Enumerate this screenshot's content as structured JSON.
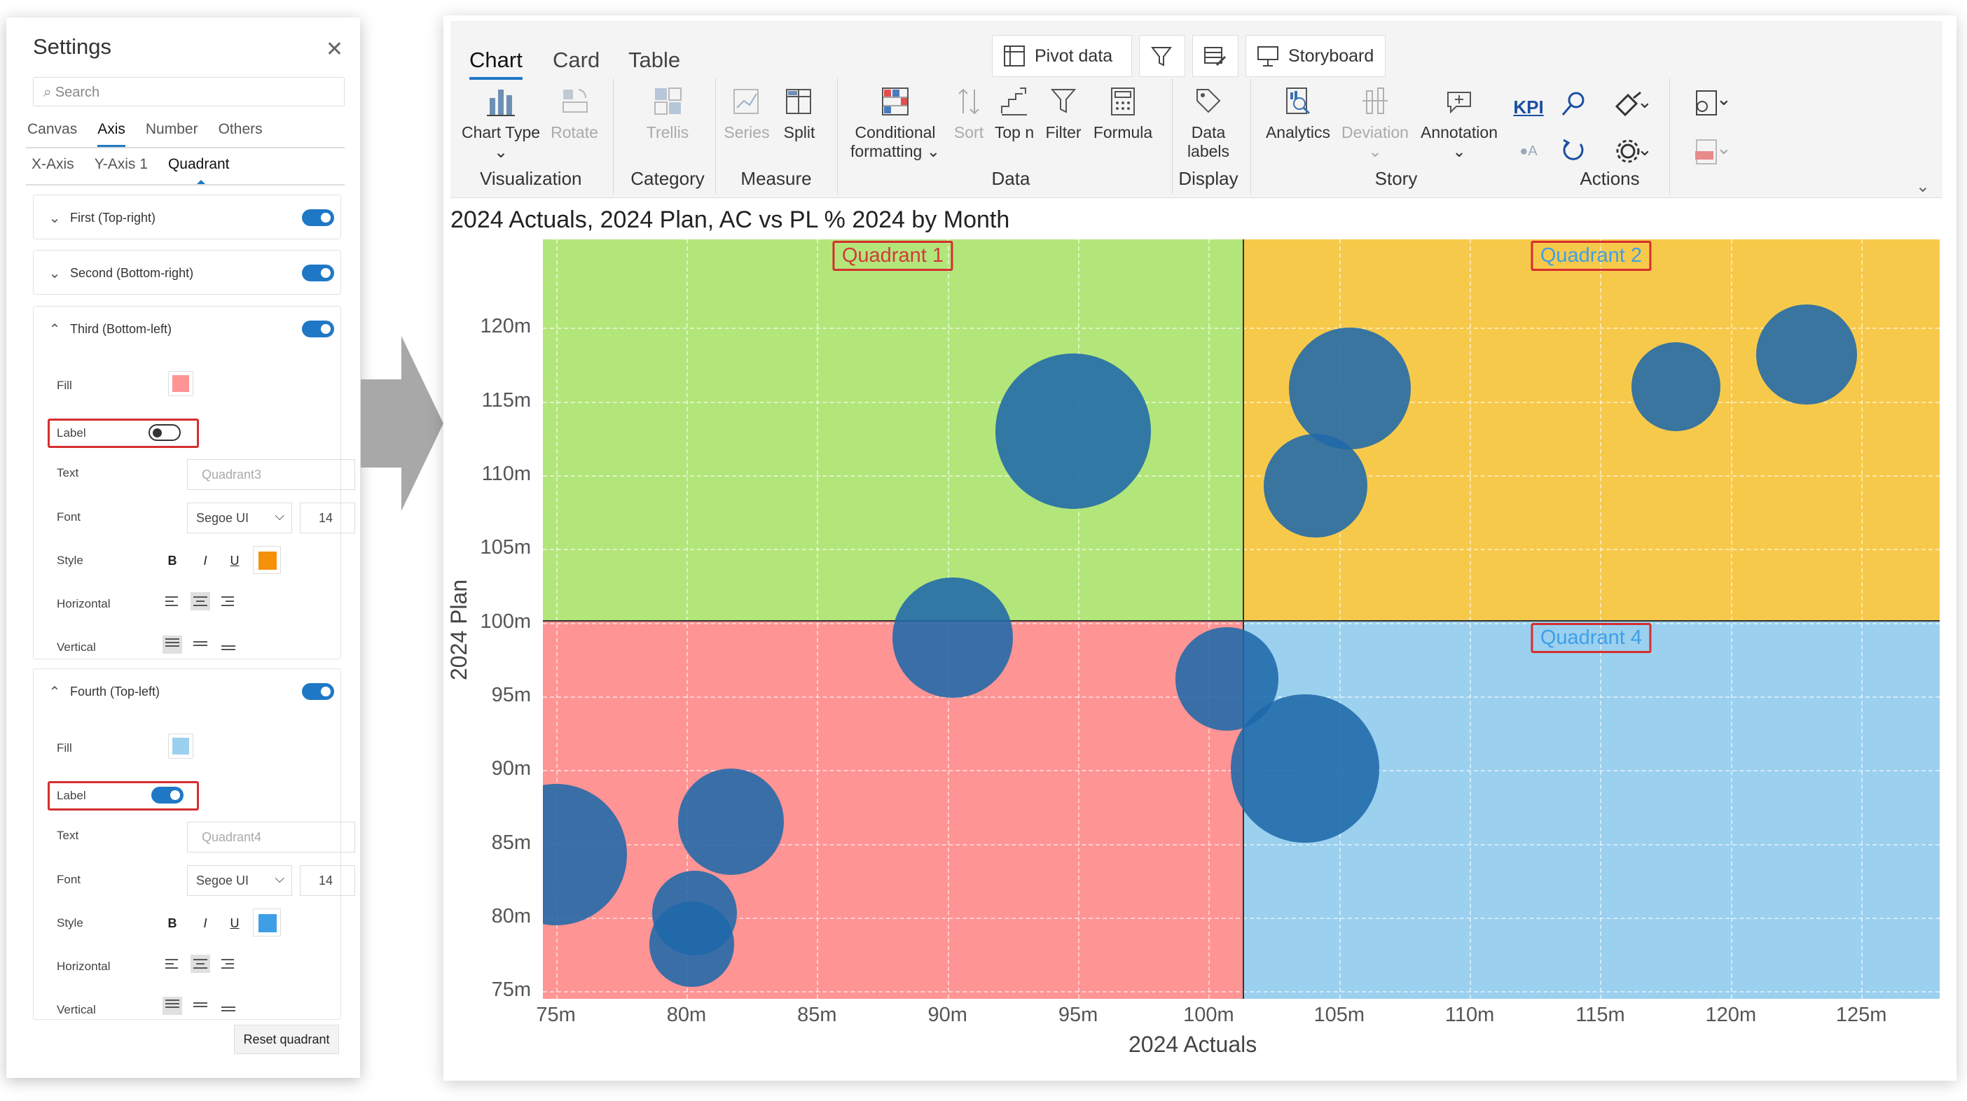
{
  "settings": {
    "title": "Settings",
    "search_placeholder": "Search",
    "tabs": [
      "Canvas",
      "Axis",
      "Number",
      "Others"
    ],
    "active_tab": "Axis",
    "subtabs": [
      "X-Axis",
      "Y-Axis 1",
      "Quadrant"
    ],
    "active_subtab": "Quadrant",
    "quadrants": [
      {
        "label": "First (Top-right)",
        "enabled": true,
        "expanded": false
      },
      {
        "label": "Second (Bottom-right)",
        "enabled": true,
        "expanded": false
      },
      {
        "label": "Third (Bottom-left)",
        "enabled": true,
        "expanded": true,
        "fill_color": "#ff9494",
        "label_on": false,
        "text_placeholder": "Quadrant3",
        "font": "Segoe UI",
        "font_size": "14",
        "font_color": "#f5900a"
      },
      {
        "label": "Fourth (Top-left)",
        "enabled": true,
        "expanded": true,
        "fill_color": "#9bd0ef",
        "label_on": true,
        "text_placeholder": "Quadrant4",
        "font": "Segoe UI",
        "font_size": "14",
        "font_color": "#3f9fe6"
      }
    ],
    "field_labels": {
      "fill": "Fill",
      "label": "Label",
      "text": "Text",
      "font": "Font",
      "style": "Style",
      "horizontal": "Horizontal",
      "vertical": "Vertical"
    },
    "style_buttons": {
      "bold": "B",
      "italic": "I",
      "underline": "U"
    },
    "reset_label": "Reset quadrant"
  },
  "ribbon": {
    "tabs": [
      "Chart",
      "Card",
      "Table"
    ],
    "active_tab": "Chart",
    "top_buttons": {
      "pivot": "Pivot data",
      "storyboard": "Storyboard"
    },
    "buttons": {
      "chart_type": "Chart Type",
      "rotate": "Rotate",
      "trellis": "Trellis",
      "series": "Series",
      "split": "Split",
      "conditional": "Conditional",
      "formatting": "formatting",
      "sort": "Sort",
      "topn": "Top n",
      "filter": "Filter",
      "formula": "Formula",
      "data": "Data",
      "labels": "labels",
      "analytics": "Analytics",
      "deviation": "Deviation",
      "annotation": "Annotation",
      "kpi": "KPI",
      "a": "A"
    },
    "groups": {
      "visualization": "Visualization",
      "category": "Category",
      "measure": "Measure",
      "data": "Data",
      "display": "Display",
      "story": "Story",
      "actions": "Actions"
    }
  },
  "chart_data": {
    "type": "scatter",
    "title": "2024 Actuals, 2024 Plan, AC vs PL % 2024 by Month",
    "xlabel": "2024 Actuals",
    "ylabel": "2024 Plan",
    "xlim": [
      74.5,
      128
    ],
    "ylim": [
      74.5,
      126
    ],
    "xticks": [
      "75m",
      "80m",
      "85m",
      "90m",
      "95m",
      "100m",
      "105m",
      "110m",
      "115m",
      "120m",
      "125m"
    ],
    "yticks": [
      "75m",
      "80m",
      "85m",
      "90m",
      "95m",
      "100m",
      "105m",
      "110m",
      "115m",
      "120m"
    ],
    "quadrant_split": {
      "x": 101.3,
      "y": 100.2
    },
    "quadrants": [
      {
        "name": "Quadrant 1",
        "position": "top-left",
        "fill": "#b3e67a",
        "label_color": "#d13a3a"
      },
      {
        "name": "Quadrant 2",
        "position": "top-right",
        "fill": "#f7c94b",
        "label_color": "#3f9fe6"
      },
      {
        "name": "",
        "position": "bottom-left",
        "fill": "#ff9494",
        "label_color": ""
      },
      {
        "name": "Quadrant 4",
        "position": "bottom-right",
        "fill": "#9bd0ef",
        "label_color": "#3f9fe6"
      }
    ],
    "points": [
      {
        "x": 75.0,
        "y": 84.3,
        "size": 1.0
      },
      {
        "x": 80.3,
        "y": 80.3,
        "size": 0.6
      },
      {
        "x": 80.2,
        "y": 78.2,
        "size": 0.6
      },
      {
        "x": 81.7,
        "y": 86.5,
        "size": 0.75
      },
      {
        "x": 90.2,
        "y": 99.0,
        "size": 0.85
      },
      {
        "x": 94.8,
        "y": 113.0,
        "size": 1.1
      },
      {
        "x": 100.7,
        "y": 96.2,
        "size": 0.73
      },
      {
        "x": 103.7,
        "y": 90.1,
        "size": 1.05
      },
      {
        "x": 104.1,
        "y": 109.3,
        "size": 0.73
      },
      {
        "x": 105.4,
        "y": 115.9,
        "size": 0.86
      },
      {
        "x": 117.9,
        "y": 116.0,
        "size": 0.63
      },
      {
        "x": 122.9,
        "y": 118.2,
        "size": 0.71
      }
    ]
  }
}
